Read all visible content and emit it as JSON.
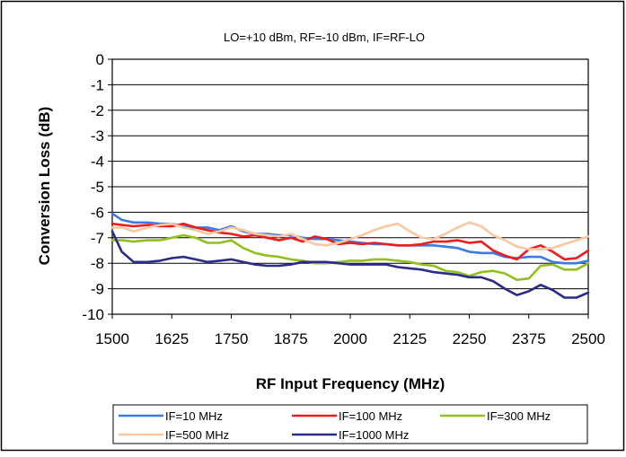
{
  "chart_data": {
    "type": "line",
    "title": "LO=+10 dBm, RF=-10 dBm, IF=RF-LO",
    "xlabel": "RF Input Frequency (MHz)",
    "ylabel": "Conversion Loss (dB)",
    "xlim": [
      1500,
      2500
    ],
    "ylim": [
      -10,
      0
    ],
    "xticks": [
      "1500",
      "1625",
      "1750",
      "1875",
      "2000",
      "2125",
      "2250",
      "2375",
      "2500"
    ],
    "yticks": [
      "0",
      "-1",
      "-2",
      "-3",
      "-4",
      "-5",
      "-6",
      "-7",
      "-8",
      "-9",
      "-10"
    ],
    "grid": "horizontal",
    "legend_position": "bottom",
    "series": [
      {
        "name": "IF=10 MHz",
        "color": "#3c7be6",
        "x": [
          1500,
          1520,
          1545,
          1575,
          1600,
          1625,
          1650,
          1675,
          1700,
          1725,
          1750,
          1775,
          1800,
          1825,
          1850,
          1875,
          1900,
          1925,
          1950,
          1975,
          2000,
          2025,
          2050,
          2075,
          2100,
          2125,
          2150,
          2175,
          2200,
          2225,
          2250,
          2275,
          2300,
          2325,
          2350,
          2375,
          2400,
          2425,
          2450,
          2475,
          2500
        ],
        "values": [
          -6.05,
          -6.3,
          -6.4,
          -6.4,
          -6.45,
          -6.45,
          -6.55,
          -6.6,
          -6.6,
          -6.7,
          -6.55,
          -6.75,
          -6.85,
          -6.85,
          -6.9,
          -6.9,
          -7.0,
          -7.05,
          -7.05,
          -7.1,
          -7.15,
          -7.2,
          -7.25,
          -7.25,
          -7.3,
          -7.3,
          -7.3,
          -7.3,
          -7.35,
          -7.4,
          -7.55,
          -7.6,
          -7.6,
          -7.75,
          -7.8,
          -7.75,
          -7.75,
          -7.95,
          -8.0,
          -8.0,
          -7.9
        ]
      },
      {
        "name": "IF=100 MHz",
        "color": "#ee1c1c",
        "x": [
          1500,
          1520,
          1545,
          1575,
          1600,
          1625,
          1650,
          1675,
          1700,
          1725,
          1750,
          1775,
          1800,
          1825,
          1850,
          1875,
          1900,
          1925,
          1950,
          1975,
          2000,
          2025,
          2050,
          2075,
          2100,
          2125,
          2150,
          2175,
          2200,
          2225,
          2250,
          2275,
          2300,
          2325,
          2350,
          2375,
          2400,
          2425,
          2450,
          2475,
          2500
        ],
        "values": [
          -6.45,
          -6.5,
          -6.55,
          -6.5,
          -6.55,
          -6.55,
          -6.45,
          -6.6,
          -6.7,
          -6.8,
          -6.85,
          -6.95,
          -6.9,
          -7.0,
          -7.1,
          -7.0,
          -7.15,
          -6.95,
          -7.05,
          -7.25,
          -7.2,
          -7.25,
          -7.2,
          -7.25,
          -7.3,
          -7.3,
          -7.25,
          -7.15,
          -7.15,
          -7.1,
          -7.2,
          -7.15,
          -7.5,
          -7.7,
          -7.85,
          -7.45,
          -7.3,
          -7.55,
          -7.85,
          -7.8,
          -7.5
        ]
      },
      {
        "name": "IF=300 MHz",
        "color": "#92c01e",
        "x": [
          1500,
          1520,
          1545,
          1575,
          1600,
          1625,
          1650,
          1675,
          1700,
          1725,
          1750,
          1775,
          1800,
          1825,
          1850,
          1875,
          1900,
          1925,
          1950,
          1975,
          2000,
          2025,
          2050,
          2075,
          2100,
          2125,
          2150,
          2175,
          2200,
          2225,
          2250,
          2275,
          2300,
          2325,
          2350,
          2375,
          2400,
          2425,
          2450,
          2475,
          2500
        ],
        "values": [
          -7.1,
          -7.1,
          -7.15,
          -7.1,
          -7.1,
          -7.0,
          -6.9,
          -7.0,
          -7.2,
          -7.2,
          -7.1,
          -7.4,
          -7.6,
          -7.7,
          -7.75,
          -7.85,
          -7.9,
          -8.0,
          -8.0,
          -7.95,
          -7.9,
          -7.9,
          -7.85,
          -7.85,
          -7.9,
          -7.95,
          -8.05,
          -8.1,
          -8.3,
          -8.35,
          -8.5,
          -8.35,
          -8.3,
          -8.4,
          -8.65,
          -8.6,
          -8.1,
          -8.05,
          -8.25,
          -8.25,
          -8.0
        ]
      },
      {
        "name": "IF=500 MHz",
        "color": "#f9c8a0",
        "x": [
          1500,
          1520,
          1545,
          1575,
          1600,
          1625,
          1650,
          1675,
          1700,
          1725,
          1750,
          1775,
          1800,
          1825,
          1850,
          1875,
          1900,
          1925,
          1950,
          1975,
          2000,
          2025,
          2050,
          2075,
          2100,
          2125,
          2150,
          2175,
          2200,
          2225,
          2250,
          2275,
          2300,
          2325,
          2350,
          2375,
          2400,
          2425,
          2450,
          2475,
          2500
        ],
        "values": [
          -6.6,
          -6.6,
          -6.75,
          -6.6,
          -6.5,
          -6.45,
          -6.6,
          -6.7,
          -6.85,
          -6.75,
          -6.6,
          -6.7,
          -6.85,
          -6.9,
          -6.95,
          -6.85,
          -7.05,
          -7.25,
          -7.3,
          -7.2,
          -7.05,
          -6.9,
          -6.7,
          -6.55,
          -6.45,
          -6.75,
          -7.0,
          -7.05,
          -6.85,
          -6.6,
          -6.4,
          -6.55,
          -6.9,
          -7.1,
          -7.35,
          -7.45,
          -7.45,
          -7.4,
          -7.25,
          -7.1,
          -6.95
        ]
      },
      {
        "name": "IF=1000 MHz",
        "color": "#2b2b8a",
        "x": [
          1500,
          1520,
          1545,
          1575,
          1600,
          1625,
          1650,
          1675,
          1700,
          1725,
          1750,
          1775,
          1800,
          1825,
          1850,
          1875,
          1900,
          1925,
          1950,
          1975,
          2000,
          2025,
          2050,
          2075,
          2100,
          2125,
          2150,
          2175,
          2200,
          2225,
          2250,
          2275,
          2300,
          2325,
          2350,
          2375,
          2400,
          2425,
          2450,
          2475,
          2500
        ],
        "values": [
          -6.75,
          -7.55,
          -7.95,
          -7.95,
          -7.9,
          -7.8,
          -7.75,
          -7.85,
          -7.95,
          -7.9,
          -7.85,
          -7.95,
          -8.05,
          -8.1,
          -8.1,
          -8.05,
          -7.95,
          -7.95,
          -7.95,
          -8.0,
          -8.05,
          -8.05,
          -8.05,
          -8.05,
          -8.15,
          -8.2,
          -8.25,
          -8.35,
          -8.4,
          -8.45,
          -8.55,
          -8.55,
          -8.7,
          -9.0,
          -9.25,
          -9.1,
          -8.85,
          -9.05,
          -9.35,
          -9.35,
          -9.15
        ]
      }
    ]
  }
}
